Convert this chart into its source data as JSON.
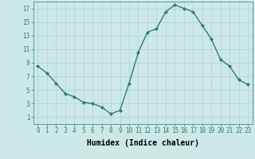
{
  "x": [
    0,
    1,
    2,
    3,
    4,
    5,
    6,
    7,
    8,
    9,
    10,
    11,
    12,
    13,
    14,
    15,
    16,
    17,
    18,
    19,
    20,
    21,
    22,
    23
  ],
  "y": [
    8.5,
    7.5,
    6.0,
    4.5,
    4.0,
    3.2,
    3.0,
    2.5,
    1.5,
    2.0,
    6.0,
    10.5,
    13.5,
    14.0,
    16.5,
    17.5,
    17.0,
    16.5,
    14.5,
    12.5,
    9.5,
    8.5,
    6.5,
    5.8
  ],
  "line_color": "#2e7d6e",
  "marker": "D",
  "marker_size": 2.0,
  "bg_color": "#cce9e8",
  "grid_color": "#b0d0cf",
  "xlabel": "Humidex (Indice chaleur)",
  "xlim": [
    -0.5,
    23.5
  ],
  "ylim": [
    0,
    18
  ],
  "xticks": [
    0,
    1,
    2,
    3,
    4,
    5,
    6,
    7,
    8,
    9,
    10,
    11,
    12,
    13,
    14,
    15,
    16,
    17,
    18,
    19,
    20,
    21,
    22,
    23
  ],
  "yticks": [
    1,
    3,
    5,
    7,
    9,
    11,
    13,
    15,
    17
  ],
  "tick_fontsize": 5.5,
  "label_fontsize": 7.0,
  "linewidth": 1.0
}
